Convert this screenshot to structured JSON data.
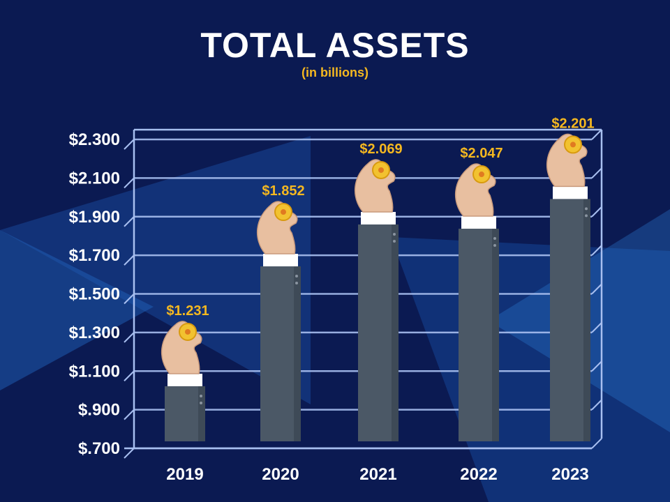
{
  "header": {
    "title": "TOTAL ASSETS",
    "subtitle": "(in billions)"
  },
  "colors": {
    "background": "#0b1a52",
    "grid": "#a8bff0",
    "bar": "#4b5866",
    "cuff": "#ffffff",
    "label": "#f5b820",
    "skin": "#e8bfa0",
    "coin": "#f2c230"
  },
  "chart_data": {
    "type": "bar",
    "categories": [
      "2019",
      "2020",
      "2021",
      "2022",
      "2023"
    ],
    "values": [
      1.231,
      1.852,
      2.069,
      2.047,
      2.201
    ],
    "value_labels": [
      "$1.231",
      "$1.852",
      "$2.069",
      "$2.047",
      "$2.201"
    ],
    "yticks": [
      0.7,
      0.9,
      1.1,
      1.3,
      1.5,
      1.7,
      1.9,
      2.1,
      2.3
    ],
    "ytick_labels": [
      "$.700",
      "$.900",
      "$1.100",
      "$1.300",
      "$1.500",
      "$1.700",
      "$1.900",
      "$2.100",
      "$2.300"
    ],
    "ylim": [
      0.7,
      2.3
    ],
    "grid": true,
    "title": "TOTAL ASSETS",
    "subtitle": "(in billions)",
    "xlabel": "",
    "ylabel": ""
  }
}
